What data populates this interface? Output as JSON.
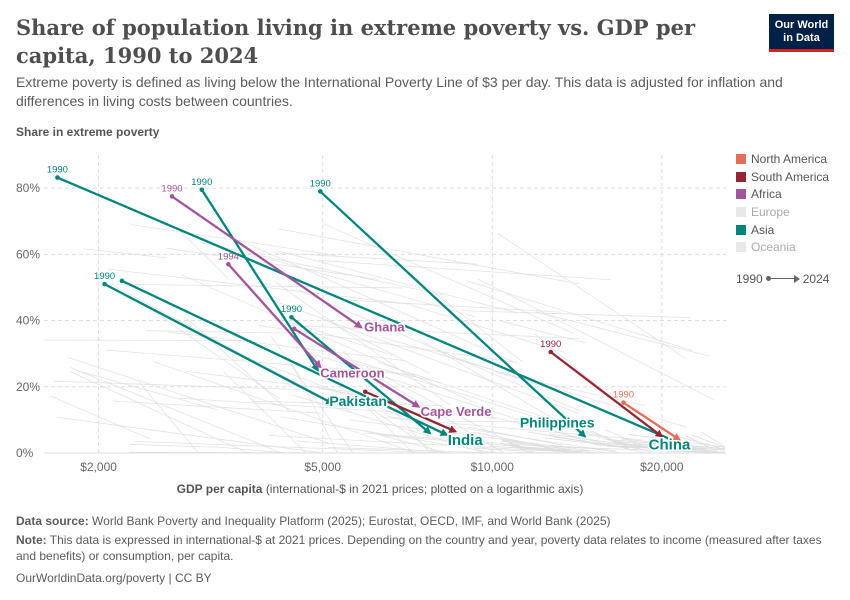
{
  "header": {
    "title": "Share of population living in extreme poverty vs. GDP per capita, 1990 to 2024",
    "subtitle": "Extreme poverty is defined as living below the International Poverty Line of $3 per day. This data is adjusted for inflation and differences in living costs between countries.",
    "logo_line1": "Our World",
    "logo_line2": "in Data"
  },
  "colors": {
    "North America": "#e56e5a",
    "South America": "#932834",
    "Africa": "#a2559c",
    "Europe": "#e8e8e8",
    "Asia": "#00847e",
    "Oceania": "#e8e8e8",
    "background_lines": "#dcdcdc",
    "grid": "#dddddd"
  },
  "legend": {
    "items": [
      {
        "label": "North America",
        "muted": false
      },
      {
        "label": "South America",
        "muted": false
      },
      {
        "label": "Africa",
        "muted": false
      },
      {
        "label": "Europe",
        "muted": true
      },
      {
        "label": "Asia",
        "muted": false
      },
      {
        "label": "Oceania",
        "muted": true
      }
    ],
    "timeline_start": "1990",
    "timeline_end": "2024"
  },
  "axes": {
    "y_title": "Share in extreme poverty",
    "x_title_bold": "GDP per capita",
    "x_title_rest": "(international-$ in 2021 prices; plotted on a logarithmic axis)"
  },
  "chart_data": {
    "type": "scatter",
    "subtype": "connected-scatter",
    "x_scale": "log",
    "xlim": [
      1600,
      26000
    ],
    "ylim": [
      0,
      90
    ],
    "x_ticks": [
      2000,
      5000,
      10000,
      20000
    ],
    "x_tick_labels": [
      "$2,000",
      "$5,000",
      "$10,000",
      "$20,000"
    ],
    "y_ticks": [
      0,
      20,
      40,
      60,
      80
    ],
    "y_tick_labels": [
      "0%",
      "20%",
      "40%",
      "60%",
      "80%"
    ],
    "grid": true,
    "legend_position": "right",
    "series": [
      {
        "name": "China",
        "region": "Asia",
        "start_year": "1990",
        "x": [
          1690,
          21500
        ],
        "y": [
          83.2,
          3
        ]
      },
      {
        "name": "",
        "region": "Asia",
        "start_year": "1990",
        "x": [
          3050,
          4900
        ],
        "y": [
          79.5,
          25
        ]
      },
      {
        "name": "Philippines",
        "region": "Asia",
        "start_year": "1990",
        "x": [
          4950,
          14600
        ],
        "y": [
          79,
          5
        ]
      },
      {
        "name": "Pakistan",
        "region": "Asia",
        "start_year": "1990",
        "x": [
          2050,
          5200
        ],
        "y": [
          51,
          15
        ]
      },
      {
        "name": "India",
        "region": "Asia",
        "start_year": "",
        "x": [
          2200,
          8300
        ],
        "y": [
          52,
          5.5
        ]
      },
      {
        "name": "",
        "region": "Asia",
        "start_year": "1990",
        "x": [
          4400,
          7750
        ],
        "y": [
          41,
          6
        ]
      },
      {
        "name": "Ghana",
        "region": "Africa",
        "start_year": "1990",
        "x": [
          2700,
          5850
        ],
        "y": [
          77.5,
          38
        ]
      },
      {
        "name": "Cameroon",
        "region": "Africa",
        "start_year": "1994",
        "x": [
          3400,
          4950
        ],
        "y": [
          57,
          26
        ]
      },
      {
        "name": "Cape Verde",
        "region": "Africa",
        "start_year": "",
        "x": [
          4450,
          7400
        ],
        "y": [
          37.5,
          14
        ]
      },
      {
        "name": "",
        "region": "South America",
        "start_year": "1990",
        "x": [
          12700,
          20000
        ],
        "y": [
          30.5,
          5
        ]
      },
      {
        "name": "",
        "region": "South America",
        "start_year": "",
        "x": [
          5950,
          8600
        ],
        "y": [
          18.5,
          6.5
        ]
      },
      {
        "name": "",
        "region": "North America",
        "start_year": "1990",
        "x": [
          17100,
          21500
        ],
        "y": [
          15.2,
          4
        ]
      }
    ],
    "labels": [
      {
        "text": "China",
        "series": 0
      },
      {
        "text": "Philippines",
        "series": 2
      },
      {
        "text": "Pakistan",
        "series": 3
      },
      {
        "text": "India",
        "series": 4
      },
      {
        "text": "Ghana",
        "series": 6
      },
      {
        "text": "Cameroon",
        "series": 7
      },
      {
        "text": "Cape Verde",
        "series": 8
      }
    ]
  },
  "footer": {
    "source_label": "Data source:",
    "source_text": "World Bank Poverty and Inequality Platform (2025); Eurostat, OECD, IMF, and World Bank (2025)",
    "note_label": "Note:",
    "note_text": "This data is expressed in international-$ at 2021 prices. Depending on the country and year, poverty data relates to income (measured after taxes and benefits) or consumption, per capita.",
    "credit": "OurWorldinData.org/poverty | CC BY"
  }
}
